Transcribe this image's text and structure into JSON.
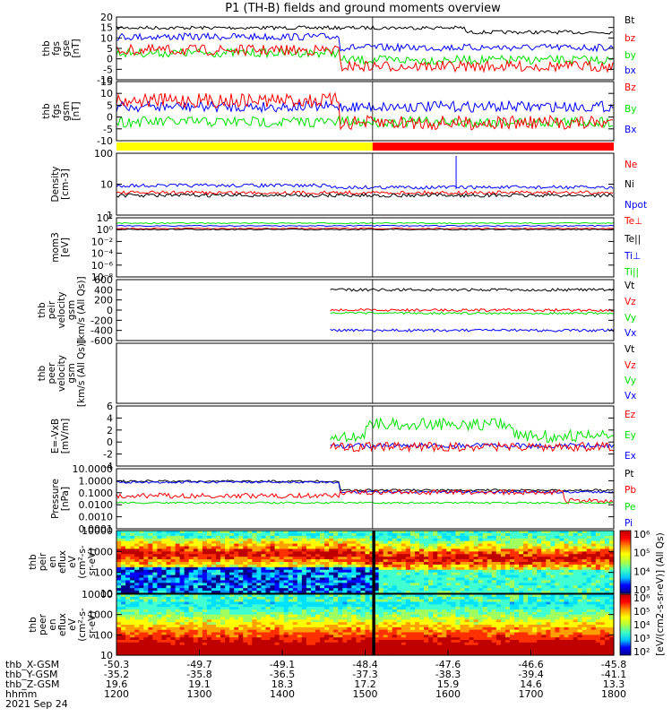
{
  "title": "P1 (TH-B) fields and ground moments overview",
  "colors": {
    "black": "#000000",
    "red": "#ff0000",
    "green": "#00e000",
    "blue": "#0000ff",
    "yellow": "#ffff00"
  },
  "chart_data": [
    {
      "type": "line",
      "panel": "fgs",
      "ylabel": [
        "thb",
        "fgs",
        "gse",
        "[nT]"
      ],
      "ylim": [
        -15,
        20
      ],
      "yticks": [
        "20",
        "15",
        "10",
        "5",
        "0",
        "-5",
        "-10"
      ],
      "legend": [
        "Bt",
        "bz",
        "by",
        "bx"
      ],
      "legend_colors": [
        "black",
        "red",
        "green",
        "blue"
      ]
    },
    {
      "type": "line",
      "panel": "fgs-gsm",
      "ylabel": [
        "thb",
        "fgs",
        "gsm",
        "[nT]"
      ],
      "ylim": [
        -15,
        15
      ],
      "yticks": [
        "15",
        "10",
        "5",
        "0",
        "-5",
        "-10"
      ],
      "legend": [
        "Bz",
        "By",
        "Bx"
      ],
      "legend_colors": [
        "red",
        "green",
        "blue"
      ]
    },
    {
      "type": "bar",
      "panel": "mode",
      "segments": [
        {
          "color": "yellow",
          "from": 0,
          "to": 0.515
        },
        {
          "color": "red",
          "from": 0.515,
          "to": 1
        }
      ]
    },
    {
      "type": "line",
      "panel": "density",
      "ylabel": [
        "Density",
        "[cm-3]"
      ],
      "ylim": [
        1,
        300
      ],
      "scale": "log",
      "yticks": [
        "100",
        "10",
        "1"
      ],
      "legend": [
        "Ne",
        "Ni",
        "Npot"
      ],
      "legend_colors": [
        "red",
        "black",
        "blue"
      ]
    },
    {
      "type": "line",
      "panel": "temperature",
      "ylabel": [
        "mom3",
        "[eV]"
      ],
      "scale": "log",
      "yticks": [
        "10²",
        "10⁰",
        "10⁻²",
        "10⁻⁴",
        "10⁻⁶",
        "10⁻⁸"
      ],
      "legend": [
        "Te⊥",
        "Te||",
        "Ti⊥",
        "Ti||"
      ],
      "legend_colors": [
        "red",
        "black",
        "blue",
        "green"
      ]
    },
    {
      "type": "line",
      "panel": "peir-velocity",
      "ylabel": [
        "thb",
        "peir",
        "velocity",
        "gsm",
        "[km/s (All Qs)]"
      ],
      "ylim": [
        -600,
        600
      ],
      "yticks": [
        "600",
        "400",
        "200",
        "0",
        "-200",
        "-400",
        "-600"
      ],
      "legend": [
        "Vt",
        "Vz",
        "Vy",
        "Vx"
      ],
      "legend_colors": [
        "black",
        "red",
        "green",
        "blue"
      ]
    },
    {
      "type": "line",
      "panel": "peer-velocity",
      "ylabel": [
        "thb",
        "peer",
        "velocity",
        "gsm",
        "[km/s (All Qs)]"
      ],
      "legend": [
        "Vt",
        "Vz",
        "Vy",
        "Vx"
      ],
      "legend_colors": [
        "black",
        "red",
        "green",
        "blue"
      ]
    },
    {
      "type": "line",
      "panel": "efield",
      "ylabel": [
        "E=-VxB",
        "[mV/m]"
      ],
      "ylim": [
        -4,
        6
      ],
      "yticks": [
        "6",
        "4",
        "2",
        "0",
        "-2",
        "-4"
      ],
      "legend": [
        "Ez",
        "Ey",
        "Ex"
      ],
      "legend_colors": [
        "red",
        "green",
        "blue"
      ]
    },
    {
      "type": "line",
      "panel": "pressure",
      "ylabel": [
        "Pressure",
        "[nPa]"
      ],
      "scale": "log",
      "yticks": [
        "10.0000",
        "1.0000",
        "0.1000",
        "0.0100",
        "0.0010",
        "0.0001"
      ],
      "legend": [
        "Pt",
        "Pb",
        "Pe",
        "Pi"
      ],
      "legend_colors": [
        "black",
        "red",
        "green",
        "blue"
      ]
    },
    {
      "type": "heatmap",
      "panel": "peir-eflux",
      "ylabel": [
        "thb",
        "peir",
        "en",
        "eflux",
        "eV",
        "(cm²-s-",
        "sr-eV)"
      ],
      "scale": "log",
      "yticks": [
        "10000",
        "1000",
        "100",
        "10"
      ]
    },
    {
      "type": "heatmap",
      "panel": "peer-eflux",
      "ylabel": [
        "thb",
        "peer",
        "en",
        "eflux",
        "eV",
        "(cm²-s-",
        "sr-eV)"
      ],
      "scale": "log",
      "yticks": [
        "10000",
        "1000",
        "100",
        "10"
      ]
    }
  ],
  "colorbar": {
    "label": "[eV/(cm2-s-sr-eV)] (All Qs)",
    "ticks_upper": [
      "10⁶",
      "10⁵",
      "10⁴",
      "10³"
    ],
    "ticks_lower": [
      "10⁶",
      "10⁵",
      "10⁴",
      "10³",
      "10²"
    ]
  },
  "x_axis": {
    "rows": [
      {
        "label": "thb_X-GSM",
        "values": [
          "-50.3",
          "-49.7",
          "-49.1",
          "-48.4",
          "-47.6",
          "-46.6",
          "-45.8"
        ]
      },
      {
        "label": "thb_Y-GSM",
        "values": [
          "-35.2",
          "-35.8",
          "-36.5",
          "-37.3",
          "-38.3",
          "-39.4",
          "-41.1"
        ]
      },
      {
        "label": "thb_Z-GSM",
        "values": [
          "19.6",
          "19.1",
          "18.3",
          "17.2",
          "15.9",
          "14.6",
          "13.3"
        ]
      },
      {
        "label": "hhmm",
        "values": [
          "1200",
          "1300",
          "1400",
          "1500",
          "1600",
          "1700",
          "1800"
        ]
      }
    ],
    "date": "2021 Sep 24"
  }
}
